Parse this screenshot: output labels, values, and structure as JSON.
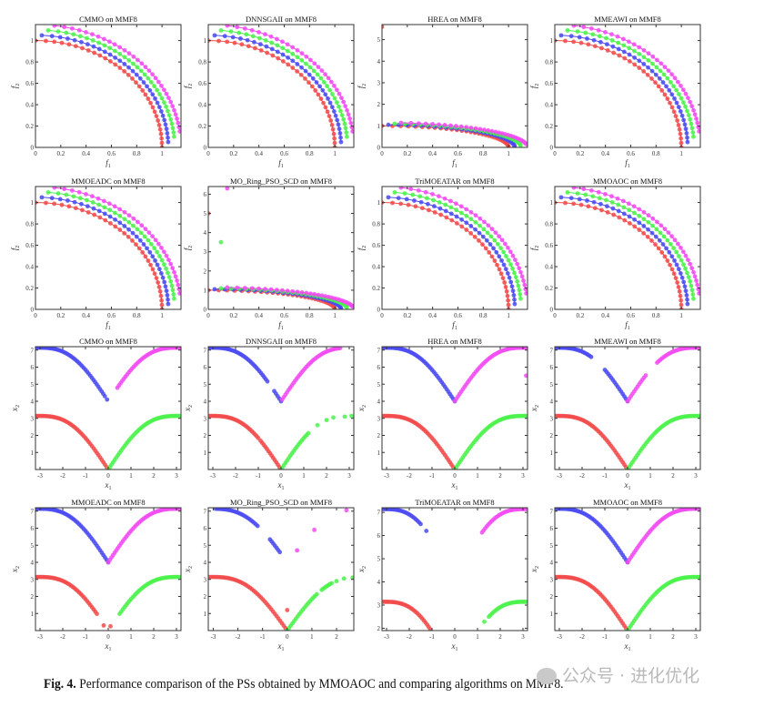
{
  "colors": {
    "s1": "#f24a4a",
    "s2": "#4a4af2",
    "s3": "#4af24a",
    "s4": "#f24af2"
  },
  "caption": {
    "label": "Fig. 4.",
    "text": "Performance comparison of the PSs obtained by MMOAOC and comparing algorithms on MMF8."
  },
  "watermark": "公众号 · 进化优化",
  "chart_data": [
    {
      "type": "scatter",
      "title": "CMMO on MMF8",
      "xlabel": "f",
      "xsub": "1",
      "ylabel": "f",
      "ysub": "2",
      "xlim": [
        0,
        1.15
      ],
      "ylim": [
        0,
        1.15
      ],
      "xticks": [
        0,
        0.2,
        0.4,
        0.6,
        0.8,
        1
      ],
      "yticks": [
        0,
        0.2,
        0.4,
        0.6,
        0.8,
        1
      ],
      "series": [
        {
          "color": "s1",
          "radius": 1,
          "min": 0
        },
        {
          "color": "s2",
          "radius": 1.05,
          "min": 0.05
        },
        {
          "color": "s3",
          "radius": 1.1,
          "min": 0.1
        },
        {
          "color": "s4",
          "radius": 1.15,
          "min": 0.15
        }
      ]
    },
    {
      "type": "scatter",
      "title": "DNNSGAII on MMF8",
      "xlabel": "f",
      "xsub": "1",
      "ylabel": "f",
      "ysub": "2",
      "xlim": [
        0,
        1.15
      ],
      "ylim": [
        0,
        1.15
      ],
      "xticks": [
        0,
        0.2,
        0.4,
        0.6,
        0.8,
        1
      ],
      "yticks": [
        0,
        0.2,
        0.4,
        0.6,
        0.8,
        1
      ],
      "series": [
        {
          "color": "s1",
          "radius": 1,
          "min": 0
        },
        {
          "color": "s2",
          "radius": 1.05,
          "min": 0.05
        },
        {
          "color": "s3",
          "radius": 1.1,
          "min": 0.1
        },
        {
          "color": "s4",
          "radius": 1.15,
          "min": 0.15
        }
      ]
    },
    {
      "type": "scatter",
      "title": "HREA on MMF8",
      "xlabel": "f",
      "xsub": "1",
      "ylabel": "f",
      "ysub": "2",
      "xlim": [
        0,
        1.15
      ],
      "ylim": [
        0,
        5.7
      ],
      "xticks": [
        0,
        0.2,
        0.4,
        0.6,
        0.8,
        1
      ],
      "yticks": [
        0,
        1,
        2,
        3,
        4,
        5
      ],
      "series": [
        {
          "color": "s1",
          "radius": 1,
          "min": 0,
          "points": [
            [
              0,
              5.6
            ]
          ]
        },
        {
          "color": "s2",
          "radius": 1.05,
          "min": 0.05
        },
        {
          "color": "s3",
          "radius": 1.1,
          "min": 0.1
        },
        {
          "color": "s4",
          "radius": 1.15,
          "min": 0.15
        }
      ]
    },
    {
      "type": "scatter",
      "title": "MMEAWI on MMF8",
      "xlabel": "f",
      "xsub": "1",
      "ylabel": "f",
      "ysub": "2",
      "xlim": [
        0,
        1.15
      ],
      "ylim": [
        0,
        1.15
      ],
      "xticks": [
        0,
        0.2,
        0.4,
        0.6,
        0.8,
        1
      ],
      "yticks": [
        0,
        0.2,
        0.4,
        0.6,
        0.8,
        1
      ],
      "series": [
        {
          "color": "s1",
          "radius": 1,
          "min": 0
        },
        {
          "color": "s2",
          "radius": 1.05,
          "min": 0.05
        },
        {
          "color": "s3",
          "radius": 1.1,
          "min": 0.1
        },
        {
          "color": "s4",
          "radius": 1.15,
          "min": 0.15
        }
      ]
    },
    {
      "type": "scatter",
      "title": "MMOEADC on MMF8",
      "xlabel": "f",
      "xsub": "1",
      "ylabel": "f",
      "ysub": "2",
      "xlim": [
        0,
        1.15
      ],
      "ylim": [
        0,
        1.15
      ],
      "xticks": [
        0,
        0.2,
        0.4,
        0.6,
        0.8,
        1
      ],
      "yticks": [
        0,
        0.2,
        0.4,
        0.6,
        0.8,
        1
      ],
      "series": [
        {
          "color": "s1",
          "radius": 1,
          "min": 0
        },
        {
          "color": "s2",
          "radius": 1.05,
          "min": 0.05
        },
        {
          "color": "s3",
          "radius": 1.1,
          "min": 0.1
        },
        {
          "color": "s4",
          "radius": 1.15,
          "min": 0.15
        }
      ]
    },
    {
      "type": "scatter",
      "title": "MO_Ring_PSO_SCD on MMF8",
      "xlabel": "f",
      "xsub": "1",
      "ylabel": "f",
      "ysub": "2",
      "xlim": [
        0,
        1.15
      ],
      "ylim": [
        0,
        6.4
      ],
      "xticks": [
        0,
        0.2,
        0.4,
        0.6,
        0.8,
        1
      ],
      "yticks": [
        0,
        1,
        2,
        3,
        4,
        5,
        6
      ],
      "series": [
        {
          "color": "s1",
          "radius": 1,
          "min": 0,
          "points": [
            [
              0,
              5
            ]
          ]
        },
        {
          "color": "s2",
          "radius": 1.05,
          "min": 0.05
        },
        {
          "color": "s3",
          "radius": 1.1,
          "min": 0.1,
          "points": [
            [
              0.1,
              3.5
            ]
          ]
        },
        {
          "color": "s4",
          "radius": 1.15,
          "min": 0.15,
          "points": [
            [
              0.15,
              6.3
            ]
          ]
        }
      ]
    },
    {
      "type": "scatter",
      "title": "TriMOEATAR on MMF8",
      "xlabel": "f",
      "xsub": "1",
      "ylabel": "f",
      "ysub": "2",
      "xlim": [
        0,
        1.15
      ],
      "ylim": [
        0,
        1.15
      ],
      "xticks": [
        0,
        0.2,
        0.4,
        0.6,
        0.8,
        1
      ],
      "yticks": [
        0,
        0.2,
        0.4,
        0.6,
        0.8,
        1
      ],
      "series": [
        {
          "color": "s1",
          "radius": 1,
          "min": 0
        },
        {
          "color": "s2",
          "radius": 1.05,
          "min": 0.05
        },
        {
          "color": "s3",
          "radius": 1.1,
          "min": 0.1
        },
        {
          "color": "s4",
          "radius": 1.15,
          "min": 0.15
        }
      ]
    },
    {
      "type": "scatter",
      "title": "MMOAOC on MMF8",
      "xlabel": "f",
      "xsub": "1",
      "ylabel": "f",
      "ysub": "2",
      "xlim": [
        0,
        1.15
      ],
      "ylim": [
        0,
        1.15
      ],
      "xticks": [
        0,
        0.2,
        0.4,
        0.6,
        0.8,
        1
      ],
      "yticks": [
        0,
        0.2,
        0.4,
        0.6,
        0.8,
        1
      ],
      "series": [
        {
          "color": "s1",
          "radius": 1,
          "min": 0
        },
        {
          "color": "s2",
          "radius": 1.05,
          "min": 0.05
        },
        {
          "color": "s3",
          "radius": 1.1,
          "min": 0.1
        },
        {
          "color": "s4",
          "radius": 1.15,
          "min": 0.15
        }
      ]
    },
    {
      "type": "scatter",
      "title": "CMMO on MMF8",
      "xlabel": "x",
      "xsub": "1",
      "ylabel": "x",
      "ysub": "2",
      "xlim": [
        -3.2,
        3.2
      ],
      "ylim": [
        0,
        7.2
      ],
      "xticks": [
        -3,
        -2,
        -1,
        0,
        1,
        2,
        3
      ],
      "yticks": [
        1,
        2,
        3,
        4,
        5,
        6,
        7
      ],
      "series": [
        {
          "color": "s1",
          "offset": 0,
          "segments": [
            [
              -3.14,
              0
            ]
          ]
        },
        {
          "color": "s2",
          "offset": 4,
          "segments": [
            [
              -3.14,
              -0.15
            ]
          ],
          "points": [
            [
              -0.05,
              4.1
            ]
          ]
        },
        {
          "color": "s3",
          "offset": 0,
          "segments": [
            [
              0,
              3.14
            ]
          ]
        },
        {
          "color": "s4",
          "offset": 4,
          "segments": [
            [
              0.4,
              3.14
            ]
          ]
        }
      ]
    },
    {
      "type": "scatter",
      "title": "DNNSGAII on MMF8",
      "xlabel": "x",
      "xsub": "1",
      "ylabel": "x",
      "ysub": "2",
      "xlim": [
        -3.2,
        3.2
      ],
      "ylim": [
        0,
        7.2
      ],
      "xticks": [
        -3,
        -2,
        -1,
        0,
        1,
        2,
        3
      ],
      "yticks": [
        1,
        2,
        3,
        4,
        5,
        6,
        7
      ],
      "series": [
        {
          "color": "s1",
          "offset": 0,
          "segments": [
            [
              -3.14,
              -1
            ],
            [
              -0.9,
              0
            ]
          ]
        },
        {
          "color": "s2",
          "offset": 4,
          "segments": [
            [
              -3.14,
              -0.6
            ],
            [
              -0.3,
              0
            ]
          ]
        },
        {
          "color": "s3",
          "offset": 0,
          "segments": [
            [
              0.05,
              1.2
            ]
          ],
          "points": [
            [
              1.6,
              2.6
            ],
            [
              2.0,
              2.9
            ],
            [
              2.3,
              3.05
            ],
            [
              2.8,
              3.1
            ],
            [
              3.1,
              3.14
            ]
          ]
        },
        {
          "color": "s4",
          "offset": 4,
          "segments": [
            [
              0.05,
              2.6
            ]
          ]
        }
      ]
    },
    {
      "type": "scatter",
      "title": "HREA on MMF8",
      "xlabel": "x",
      "xsub": "1",
      "ylabel": "x",
      "ysub": "2",
      "xlim": [
        -3.2,
        3.2
      ],
      "ylim": [
        0,
        7.2
      ],
      "xticks": [
        -3,
        -2,
        -1,
        0,
        1,
        2,
        3
      ],
      "yticks": [
        1,
        2,
        3,
        4,
        5,
        6,
        7
      ],
      "series": [
        {
          "color": "s1",
          "offset": 0,
          "segments": [
            [
              -3.14,
              0
            ]
          ]
        },
        {
          "color": "s2",
          "offset": 4,
          "segments": [
            [
              -3.14,
              0
            ]
          ]
        },
        {
          "color": "s3",
          "offset": 0,
          "segments": [
            [
              0,
              3.14
            ]
          ]
        },
        {
          "color": "s4",
          "offset": 4,
          "segments": [
            [
              0,
              3.14
            ]
          ],
          "points": [
            [
              3.14,
              5.5
            ]
          ]
        }
      ]
    },
    {
      "type": "scatter",
      "title": "MMEAWI on MMF8",
      "xlabel": "x",
      "xsub": "1",
      "ylabel": "x",
      "ysub": "2",
      "xlim": [
        -3.2,
        3.2
      ],
      "ylim": [
        0,
        7.2
      ],
      "xticks": [
        -3,
        -2,
        -1,
        0,
        1,
        2,
        3
      ],
      "yticks": [
        1,
        2,
        3,
        4,
        5,
        6,
        7
      ],
      "series": [
        {
          "color": "s1",
          "offset": 0,
          "segments": [
            [
              -3.14,
              0
            ]
          ]
        },
        {
          "color": "s2",
          "offset": 4,
          "segments": [
            [
              -3.14,
              -1.6
            ],
            [
              -1.0,
              0
            ]
          ]
        },
        {
          "color": "s3",
          "offset": 0,
          "segments": [
            [
              0,
              3.14
            ]
          ]
        },
        {
          "color": "s4",
          "offset": 4,
          "segments": [
            [
              0,
              0.8
            ],
            [
              1.3,
              3.14
            ]
          ]
        }
      ]
    },
    {
      "type": "scatter",
      "title": "MMOEADC on MMF8",
      "xlabel": "x",
      "xsub": "1",
      "ylabel": "x",
      "ysub": "2",
      "xlim": [
        -3.2,
        3.2
      ],
      "ylim": [
        0,
        7.2
      ],
      "xticks": [
        -3,
        -2,
        -1,
        0,
        1,
        2,
        3
      ],
      "yticks": [
        1,
        2,
        3,
        4,
        5,
        6,
        7
      ],
      "series": [
        {
          "color": "s1",
          "offset": 0,
          "segments": [
            [
              -3.14,
              -0.5
            ]
          ],
          "points": [
            [
              -0.2,
              0.3
            ],
            [
              0.1,
              0.25
            ]
          ]
        },
        {
          "color": "s2",
          "offset": 4,
          "segments": [
            [
              -3.14,
              0
            ]
          ]
        },
        {
          "color": "s3",
          "offset": 0,
          "segments": [
            [
              0.5,
              3.14
            ]
          ]
        },
        {
          "color": "s4",
          "offset": 4,
          "segments": [
            [
              0,
              3.14
            ]
          ]
        }
      ]
    },
    {
      "type": "scatter",
      "title": "MO_Ring_PSO_SCD on MMF8",
      "xlabel": "x",
      "xsub": "1",
      "ylabel": "x",
      "ysub": "2",
      "xlim": [
        -3.2,
        2.7
      ],
      "ylim": [
        0,
        7.2
      ],
      "xticks": [
        -3,
        -2,
        -1,
        0,
        1,
        2
      ],
      "yticks": [
        1,
        2,
        3,
        4,
        5,
        6,
        7
      ],
      "series": [
        {
          "color": "s1",
          "offset": 0,
          "segments": [
            [
              -3.14,
              0
            ]
          ],
          "points": [
            [
              0,
              1.2
            ]
          ]
        },
        {
          "color": "s2",
          "offset": 4,
          "segments": [
            [
              -2.9,
              -1.2
            ],
            [
              -0.7,
              -0.3
            ]
          ]
        },
        {
          "color": "s3",
          "offset": 0,
          "segments": [
            [
              0,
              1.2
            ],
            [
              1.4,
              1.8
            ]
          ],
          "points": [
            [
              2.0,
              2.9
            ],
            [
              2.3,
              3.05
            ],
            [
              2.65,
              3.1
            ]
          ]
        },
        {
          "color": "s4",
          "offset": 4,
          "segments": [],
          "points": [
            [
              0.4,
              4.7
            ],
            [
              1.1,
              5.9
            ],
            [
              2.4,
              7.05
            ]
          ]
        }
      ]
    },
    {
      "type": "scatter",
      "title": "TriMOEATAR on MMF8",
      "xlabel": "x",
      "xsub": "1",
      "ylabel": "x",
      "ysub": "2",
      "xlim": [
        -3.2,
        3.2
      ],
      "ylim": [
        1.9,
        7.2
      ],
      "xticks": [
        -3,
        -2,
        -1,
        0,
        1,
        2,
        3
      ],
      "yticks": [
        2,
        3,
        4,
        5,
        6,
        7
      ],
      "series": [
        {
          "color": "s1",
          "offset": 0,
          "segments": [
            [
              -3.14,
              -1
            ]
          ]
        },
        {
          "color": "s2",
          "offset": 4,
          "segments": [
            [
              -3.14,
              -1.5
            ]
          ],
          "points": [
            [
              -1.25,
              6.2
            ]
          ]
        },
        {
          "color": "s3",
          "offset": 0,
          "segments": [
            [
              1.5,
              3.14
            ]
          ],
          "points": [
            [
              1.3,
              2.28
            ]
          ]
        },
        {
          "color": "s4",
          "offset": 4,
          "segments": [
            [
              1.2,
              3.14
            ]
          ]
        }
      ]
    },
    {
      "type": "scatter",
      "title": "MMOAOC on MMF8",
      "xlabel": "x",
      "xsub": "1",
      "ylabel": "x",
      "ysub": "2",
      "xlim": [
        -3.2,
        3.2
      ],
      "ylim": [
        0,
        7.2
      ],
      "xticks": [
        -3,
        -2,
        -1,
        0,
        1,
        2,
        3
      ],
      "yticks": [
        1,
        2,
        3,
        4,
        5,
        6,
        7
      ],
      "series": [
        {
          "color": "s1",
          "offset": 0,
          "segments": [
            [
              -3.14,
              0
            ]
          ]
        },
        {
          "color": "s2",
          "offset": 4,
          "segments": [
            [
              -3.14,
              0
            ]
          ]
        },
        {
          "color": "s3",
          "offset": 0,
          "segments": [
            [
              0,
              3.14
            ]
          ]
        },
        {
          "color": "s4",
          "offset": 4,
          "segments": [
            [
              0,
              3.14
            ]
          ]
        }
      ]
    }
  ]
}
